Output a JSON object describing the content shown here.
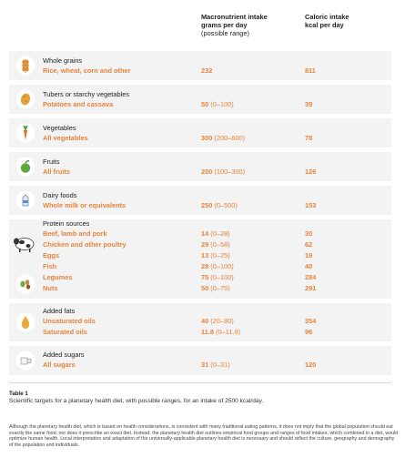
{
  "header": {
    "macro_title_1": "Macronutrient intake",
    "macro_title_2": "grams per day",
    "macro_sub": "(possible range)",
    "cal_title_1": "Caloric intake",
    "cal_title_2": "kcal per day"
  },
  "groups": [
    {
      "category": "Whole grains",
      "icon": "wheat-icon",
      "items": [
        {
          "name": "Rice, wheat, corn and other",
          "grams": "232",
          "range": "",
          "kcal": "811"
        }
      ]
    },
    {
      "category": "Tubers or starchy vegetables",
      "icon": "potato-icon",
      "items": [
        {
          "name": "Potatoes and cassava",
          "grams": "50",
          "range": "(0–100)",
          "kcal": "39"
        }
      ]
    },
    {
      "category": "Vegetables",
      "icon": "carrot-icon",
      "items": [
        {
          "name": "All vegetables",
          "grams": "300",
          "range": "(200–600)",
          "kcal": "78"
        }
      ]
    },
    {
      "category": "Fruits",
      "icon": "apple-icon",
      "items": [
        {
          "name": "All fruits",
          "grams": "200",
          "range": "(100–300)",
          "kcal": "126"
        }
      ]
    },
    {
      "category": "Dairy foods",
      "icon": "milk-carton-icon",
      "items": [
        {
          "name": "Whole milk or equivalents",
          "grams": "250",
          "range": "(0–500)",
          "kcal": "153"
        }
      ]
    },
    {
      "category": "Protein sources",
      "icon": "cow-icon",
      "items": [
        {
          "name": "Beef, lamb and pork",
          "grams": "14",
          "range": "(0–28)",
          "kcal": "30"
        },
        {
          "name": "Chicken and other poultry",
          "grams": "29",
          "range": "(0–58)",
          "kcal": "62"
        },
        {
          "name": "Eggs",
          "grams": "13",
          "range": "(0–25)",
          "kcal": "19"
        },
        {
          "name": "Fish",
          "grams": "28",
          "range": "(0–100)",
          "kcal": "40"
        },
        {
          "name": "Legumes",
          "grams": "75",
          "range": "(0–100)",
          "kcal": "284"
        },
        {
          "name": "Nuts",
          "grams": "50",
          "range": "(0–75)",
          "kcal": "291"
        }
      ]
    },
    {
      "category": "Added fats",
      "icon": "oil-drop-icon",
      "items": [
        {
          "name": "Unsaturated oils",
          "grams": "40",
          "range": "(20–80)",
          "kcal": "354"
        },
        {
          "name": "Saturated oils",
          "grams": "11.8",
          "range": "(0–11.8)",
          "kcal": "96"
        }
      ]
    },
    {
      "category": "Added sugars",
      "icon": "sugar-cube-icon",
      "items": [
        {
          "name": "All sugars",
          "grams": "31",
          "range": "(0–31)",
          "kcal": "120"
        }
      ]
    }
  ],
  "caption": {
    "label": "Table 1",
    "text": "Scientific targets for a planetary health diet, with possible ranges, for an intake of 2500 kcal/day."
  },
  "footnote": "Although the planetary health diet, which is based on health considerations, is consistent with many traditional eating patterns, it does not imply that the global population should eat exactly the same food, nor does it prescribe an exact diet. Instead, the planetary health diet outlines empirical food groups and ranges of food intakes, which combined in a diet, would optimize human health. Local interpretation and adaptation of the universally-applicable planetary health diet is necessary and should reflect the culture, geography and demography of the population and individuals.",
  "colors": {
    "accent": "#e8833a",
    "row_bg": "#f3f3f3"
  }
}
